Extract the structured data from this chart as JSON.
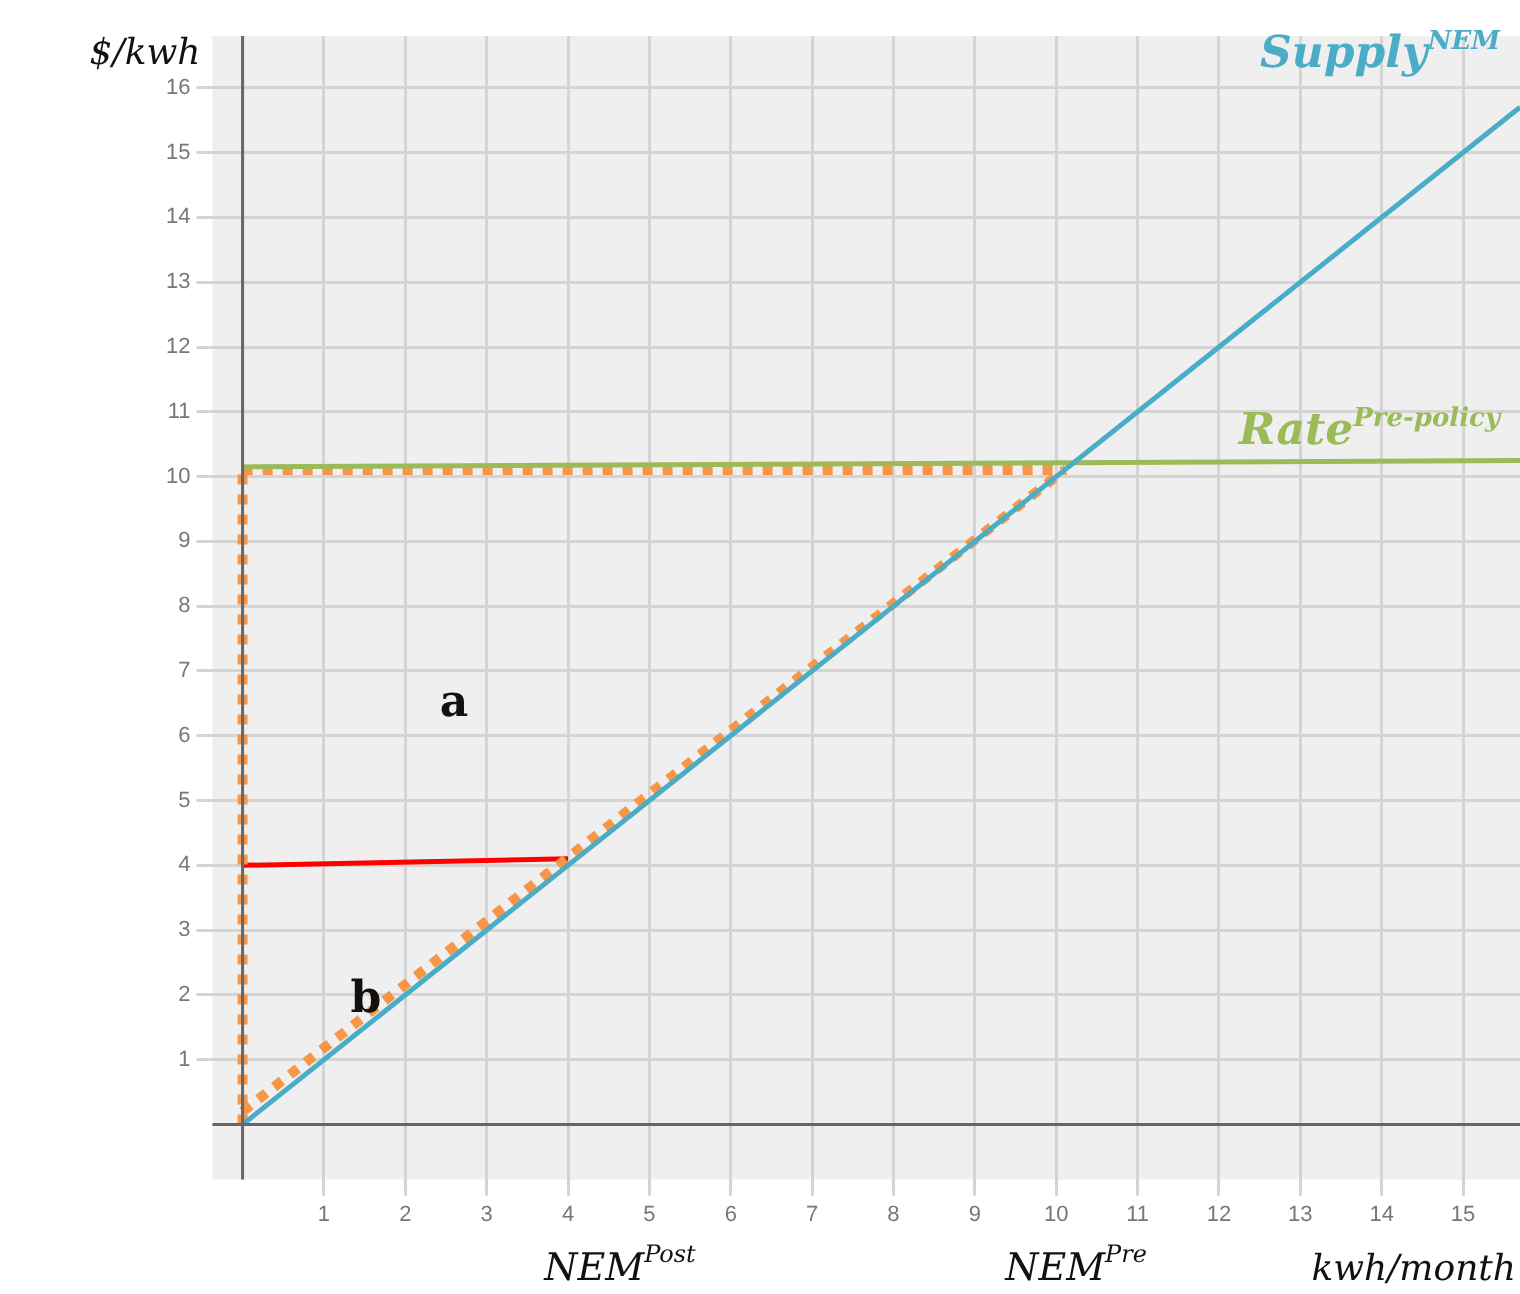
{
  "chart_data": {
    "type": "line",
    "ylabel": "$/kwh",
    "xlabel": "kwh/month",
    "xlim": [
      -0.37,
      15.7
    ],
    "ylim": [
      -0.85,
      16.8
    ],
    "xticks": [
      1,
      2,
      3,
      4,
      5,
      6,
      7,
      8,
      9,
      10,
      11,
      12,
      13,
      14,
      15
    ],
    "yticks": [
      1,
      2,
      3,
      4,
      5,
      6,
      7,
      8,
      9,
      10,
      11,
      12,
      13,
      14,
      15,
      16
    ],
    "grid": true,
    "legend": false,
    "marker": "none",
    "series": [
      {
        "name": "Supply$^{NEM}$",
        "color": "#4bacc6",
        "x": [
          0,
          15.7
        ],
        "values": [
          0,
          15.7
        ],
        "line_style": "solid"
      },
      {
        "name": "Rate$^{Pre-policy}$",
        "color": "#9bbb59",
        "x": [
          0,
          15.7
        ],
        "values": [
          10.15,
          10.25
        ],
        "line_style": "solid"
      },
      {
        "color": "#f79646",
        "x": [
          0,
          10.1
        ],
        "values": [
          10.1,
          10.1
        ],
        "line_style": "dotted"
      },
      {
        "color": "#f79646",
        "x": [
          0,
          0
        ],
        "values": [
          0,
          10.1
        ],
        "line_style": "dotted"
      },
      {
        "color": "#f79646",
        "x": [
          0,
          10.1
        ],
        "values": [
          0.2,
          10.1
        ],
        "line_style": "dotted"
      },
      {
        "color": "#ff0000",
        "x": [
          0,
          4
        ],
        "values": [
          4,
          4.1
        ],
        "line_style": "solid"
      }
    ],
    "annotations": [
      "a",
      "b",
      "NEM$^{Post}$",
      "NEM$^{Pre}$"
    ]
  }
}
